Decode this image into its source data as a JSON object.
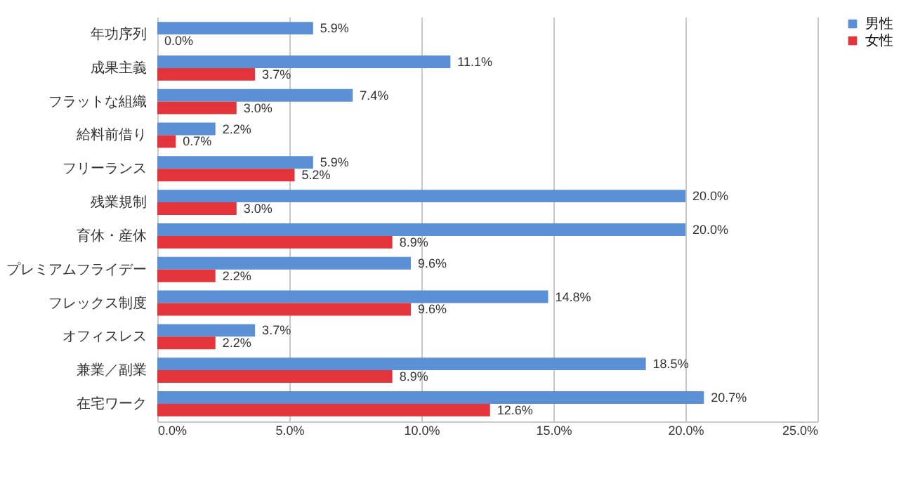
{
  "chart_data": {
    "type": "bar",
    "orientation": "horizontal",
    "categories": [
      "年功序列",
      "成果主義",
      "フラットな組織",
      "給料前借り",
      "フリーランス",
      "残業規制",
      "育休・産休",
      "プレミアムフライデー",
      "フレックス制度",
      "オフィスレス",
      "兼業／副業",
      "在宅ワーク"
    ],
    "series": [
      {
        "name": "男性",
        "color": "#5b8fd6",
        "values": [
          5.9,
          11.1,
          7.4,
          2.2,
          5.9,
          20.0,
          20.0,
          9.6,
          14.8,
          3.7,
          18.5,
          20.7
        ],
        "value_labels": [
          "5.9%",
          "11.1%",
          "7.4%",
          "2.2%",
          "5.9%",
          "20.0%",
          "20.0%",
          "9.6%",
          "14.8%",
          "3.7%",
          "18.5%",
          "20.7%"
        ]
      },
      {
        "name": "女性",
        "color": "#e2343a",
        "values": [
          0.0,
          3.7,
          3.0,
          0.7,
          5.2,
          3.0,
          8.9,
          2.2,
          9.6,
          2.2,
          8.9,
          12.6
        ],
        "value_labels": [
          "0.0%",
          "3.7%",
          "3.0%",
          "0.7%",
          "5.2%",
          "3.0%",
          "8.9%",
          "2.2%",
          "9.6%",
          "2.2%",
          "8.9%",
          "12.6%"
        ]
      }
    ],
    "xlim": [
      0,
      25
    ],
    "xticks": [
      {
        "value": 0,
        "label": "0.0%"
      },
      {
        "value": 5,
        "label": "5.0%"
      },
      {
        "value": 10,
        "label": "10.0%"
      },
      {
        "value": 15,
        "label": "15.0%"
      },
      {
        "value": 20,
        "label": "20.0%"
      },
      {
        "value": 25,
        "label": "25.0%"
      }
    ],
    "grid": "x",
    "legend": "right"
  }
}
